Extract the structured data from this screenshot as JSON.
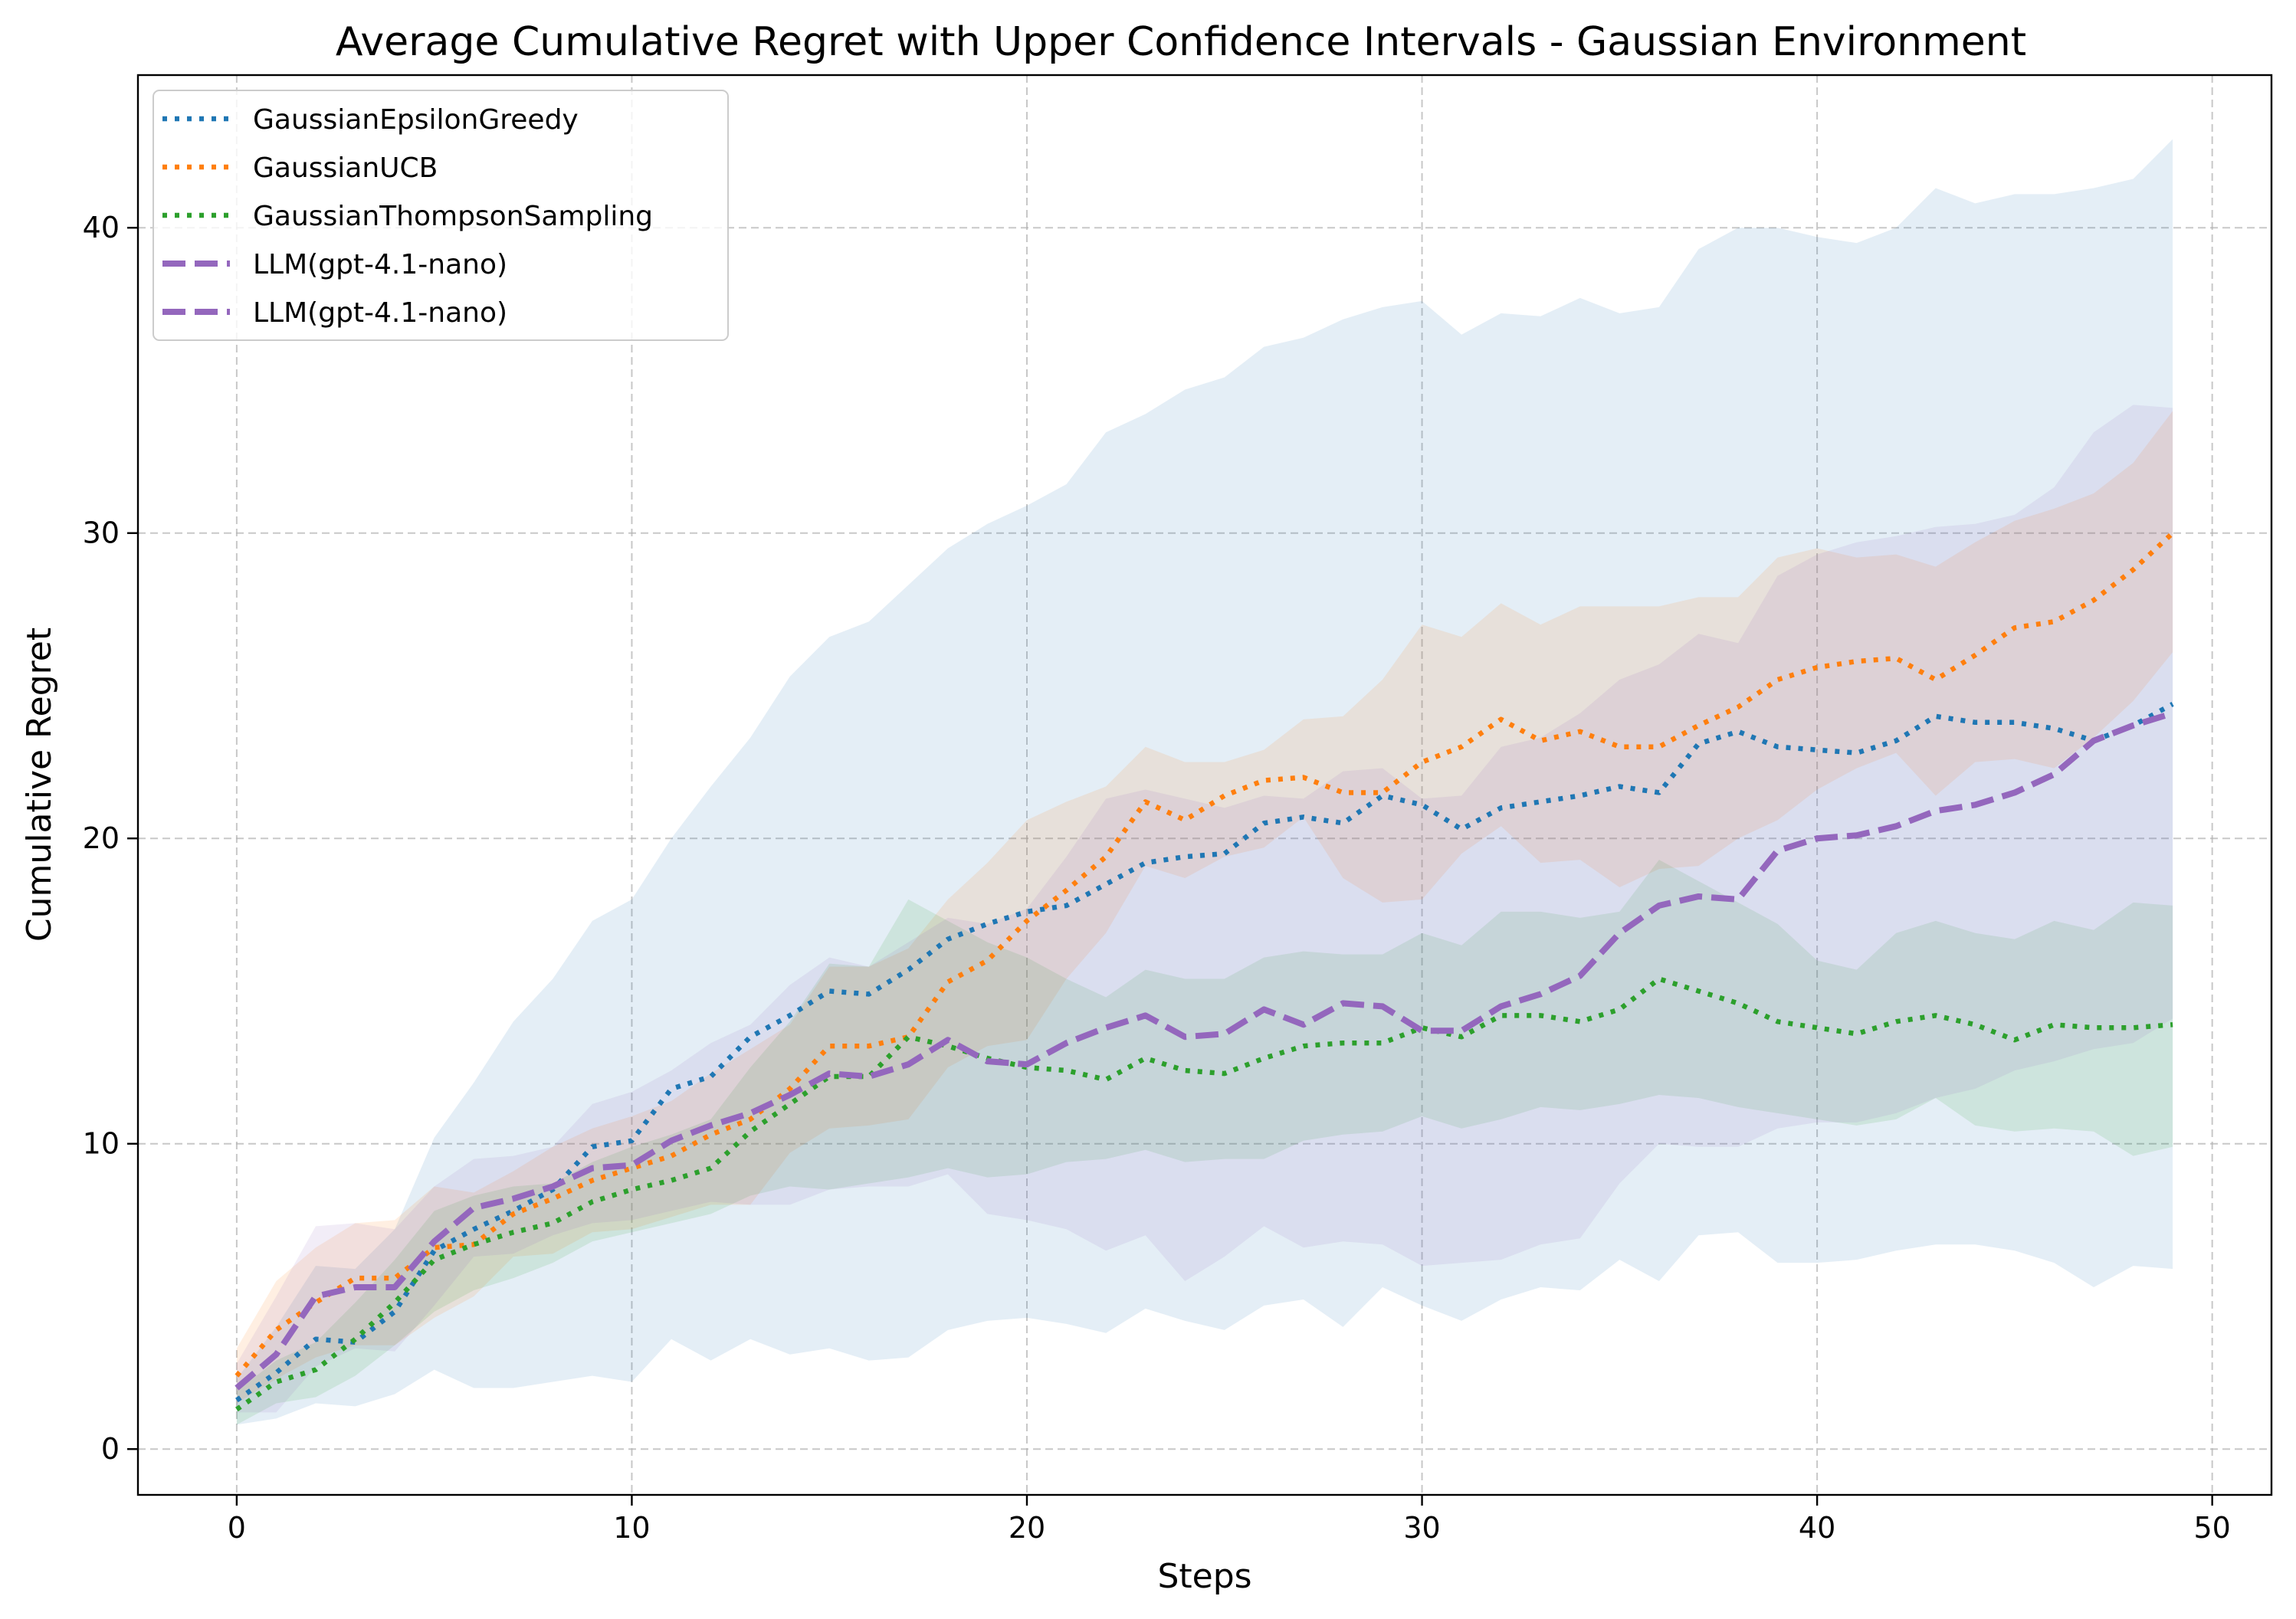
{
  "chart_data": {
    "type": "line",
    "title": "Average Cumulative Regret with Upper Confidence Intervals - Gaussian Environment",
    "xlabel": "Steps",
    "ylabel": "Cumulative Regret",
    "xlim": [
      -2.5,
      51.5
    ],
    "ylim": [
      -1.5,
      45
    ],
    "xticks": [
      0,
      10,
      20,
      30,
      40,
      50
    ],
    "yticks": [
      0,
      10,
      20,
      30,
      40
    ],
    "grid": true,
    "legend_position": "upper-left",
    "x": [
      0,
      1,
      2,
      3,
      4,
      5,
      6,
      7,
      8,
      9,
      10,
      11,
      12,
      13,
      14,
      15,
      16,
      17,
      18,
      19,
      20,
      21,
      22,
      23,
      24,
      25,
      26,
      27,
      28,
      29,
      30,
      31,
      32,
      33,
      34,
      35,
      36,
      37,
      38,
      39,
      40,
      41,
      42,
      43,
      44,
      45,
      46,
      47,
      48,
      49
    ],
    "series": [
      {
        "name": "GaussianEpsilonGreedy",
        "color": "#1f77b4",
        "dash": "dotted",
        "values": [
          1.6,
          2.5,
          3.6,
          3.5,
          4.5,
          6.5,
          7.2,
          7.8,
          8.5,
          9.9,
          10.1,
          11.8,
          12.2,
          13.5,
          14.2,
          15.0,
          14.9,
          15.7,
          16.7,
          17.2,
          17.6,
          17.8,
          18.5,
          19.2,
          19.4,
          19.5,
          20.5,
          20.7,
          20.5,
          21.4,
          21.1,
          20.3,
          21.0,
          21.2,
          21.4,
          21.7,
          21.5,
          23.1,
          23.5,
          23.0,
          22.9,
          22.8,
          23.2,
          24.0,
          23.8,
          23.8,
          23.6,
          23.2,
          23.7,
          24.4
        ],
        "lower": [
          0.8,
          1.0,
          1.5,
          1.4,
          1.8,
          2.6,
          2.0,
          2.0,
          2.2,
          2.4,
          2.2,
          3.6,
          2.9,
          3.6,
          3.1,
          3.3,
          2.9,
          3.0,
          3.9,
          4.2,
          4.3,
          4.1,
          3.8,
          4.6,
          4.2,
          3.9,
          4.7,
          4.9,
          4.0,
          5.3,
          4.7,
          4.2,
          4.9,
          5.3,
          5.2,
          6.2,
          5.5,
          7.0,
          7.1,
          6.1,
          6.1,
          6.2,
          6.5,
          6.7,
          6.7,
          6.5,
          6.1,
          5.3,
          6.0,
          5.9
        ],
        "upper": [
          2.3,
          4.0,
          6.0,
          5.9,
          7.2,
          10.2,
          12.0,
          14.0,
          15.4,
          17.3,
          18.0,
          20.0,
          21.7,
          23.3,
          25.3,
          26.6,
          27.1,
          28.3,
          29.5,
          30.3,
          30.9,
          31.6,
          33.3,
          33.9,
          34.7,
          35.1,
          36.1,
          36.4,
          37.0,
          37.4,
          37.6,
          36.5,
          37.2,
          37.1,
          37.7,
          37.2,
          37.4,
          39.3,
          40.0,
          40.0,
          39.7,
          39.5,
          40.0,
          41.3,
          40.8,
          41.1,
          41.1,
          41.3,
          41.6,
          42.9
        ]
      },
      {
        "name": "GaussianUCB",
        "color": "#ff7f0e",
        "dash": "dotted",
        "values": [
          2.4,
          3.9,
          4.8,
          5.6,
          5.6,
          6.6,
          6.7,
          7.7,
          8.2,
          8.8,
          9.2,
          9.6,
          10.3,
          10.8,
          11.8,
          13.2,
          13.2,
          13.5,
          15.3,
          16.0,
          17.3,
          18.3,
          19.4,
          21.2,
          20.6,
          21.4,
          21.9,
          22.0,
          21.5,
          21.5,
          22.5,
          23.0,
          23.9,
          23.2,
          23.5,
          23.0,
          23.0,
          23.7,
          24.3,
          25.2,
          25.6,
          25.8,
          25.9,
          25.2,
          26.0,
          26.9,
          27.1,
          27.8,
          28.8,
          30.0
        ],
        "lower": [
          1.5,
          2.3,
          3.0,
          3.4,
          3.4,
          4.3,
          5.0,
          6.3,
          6.4,
          7.1,
          7.2,
          7.6,
          8.0,
          8.0,
          9.7,
          10.5,
          10.6,
          10.8,
          12.5,
          13.2,
          13.4,
          15.4,
          16.9,
          19.1,
          18.7,
          19.4,
          19.7,
          20.7,
          18.7,
          17.9,
          18.0,
          19.5,
          20.4,
          19.2,
          19.3,
          18.4,
          19.0,
          19.1,
          20.0,
          20.6,
          21.6,
          22.3,
          22.8,
          21.4,
          22.5,
          22.6,
          22.3,
          23.3,
          24.5,
          26.1
        ],
        "upper": [
          3.3,
          5.5,
          6.6,
          7.4,
          7.5,
          8.6,
          8.4,
          9.1,
          9.9,
          10.5,
          10.9,
          11.4,
          12.3,
          13.1,
          13.9,
          15.8,
          15.8,
          16.4,
          18.0,
          19.2,
          20.6,
          21.2,
          21.7,
          23.0,
          22.5,
          22.5,
          22.9,
          23.9,
          24.0,
          25.2,
          27.0,
          26.6,
          27.7,
          27.0,
          27.6,
          27.6,
          27.6,
          27.9,
          27.9,
          29.2,
          29.5,
          29.2,
          29.3,
          28.9,
          29.7,
          30.4,
          30.8,
          31.3,
          32.3,
          34.0
        ]
      },
      {
        "name": "GaussianThompsonSampling",
        "color": "#2ca02c",
        "dash": "dotted",
        "values": [
          1.3,
          2.2,
          2.6,
          3.6,
          4.8,
          6.2,
          6.7,
          7.1,
          7.4,
          8.1,
          8.5,
          8.8,
          9.2,
          10.4,
          11.3,
          12.2,
          12.2,
          13.5,
          13.2,
          12.8,
          12.5,
          12.4,
          12.1,
          12.8,
          12.4,
          12.3,
          12.8,
          13.2,
          13.3,
          13.3,
          13.8,
          13.5,
          14.2,
          14.2,
          14.0,
          14.4,
          15.4,
          15.0,
          14.6,
          14.0,
          13.8,
          13.6,
          14.0,
          14.2,
          13.9,
          13.4,
          13.9,
          13.8,
          13.8,
          13.9
        ],
        "lower": [
          0.8,
          1.5,
          1.7,
          2.4,
          3.4,
          4.5,
          5.2,
          5.6,
          6.1,
          6.8,
          7.1,
          7.4,
          7.7,
          8.3,
          8.6,
          8.5,
          8.7,
          8.9,
          9.2,
          8.9,
          9.0,
          9.4,
          9.5,
          9.8,
          9.4,
          9.5,
          9.5,
          10.1,
          10.3,
          10.4,
          10.9,
          10.5,
          10.8,
          11.2,
          11.1,
          11.3,
          11.6,
          11.5,
          11.2,
          11.0,
          10.8,
          10.6,
          10.8,
          11.5,
          10.6,
          10.4,
          10.5,
          10.4,
          9.6,
          9.9
        ],
        "upper": [
          1.9,
          2.9,
          3.5,
          4.8,
          6.2,
          7.8,
          8.3,
          8.6,
          8.7,
          9.4,
          9.9,
          10.3,
          10.8,
          12.5,
          14.0,
          15.9,
          15.8,
          18.0,
          17.3,
          16.6,
          16.1,
          15.4,
          14.8,
          15.7,
          15.4,
          15.4,
          16.1,
          16.3,
          16.2,
          16.2,
          16.9,
          16.5,
          17.6,
          17.6,
          17.4,
          17.6,
          19.3,
          18.6,
          17.9,
          17.2,
          16.0,
          15.7,
          16.9,
          17.3,
          16.9,
          16.7,
          17.3,
          17.0,
          17.9,
          17.8
        ]
      },
      {
        "name": "LLM(gpt-4.1-nano)",
        "color": "#9467bd",
        "dash": "dashed",
        "values": [
          2.0,
          3.1,
          5.0,
          5.3,
          5.3,
          6.8,
          7.9,
          8.2,
          8.6,
          9.2,
          9.3,
          10.1,
          10.6,
          11.0,
          11.6,
          12.3,
          12.2,
          12.6,
          13.4,
          12.7,
          12.6,
          13.3,
          13.8,
          14.2,
          13.5,
          13.6,
          14.4,
          13.9,
          14.6,
          14.5,
          13.7,
          13.7,
          14.5,
          14.9,
          15.5,
          16.9,
          17.8,
          18.1,
          18.0,
          19.6,
          20.0,
          20.1,
          20.4,
          20.9,
          21.1,
          21.5,
          22.1,
          23.2,
          23.7,
          24.1
        ],
        "lower": [
          1.2,
          1.2,
          2.7,
          3.3,
          3.2,
          4.7,
          6.3,
          6.4,
          7.0,
          7.4,
          7.5,
          7.8,
          8.1,
          8.0,
          8.0,
          8.5,
          8.6,
          8.6,
          9.0,
          7.7,
          7.5,
          7.2,
          6.5,
          7.0,
          5.5,
          6.3,
          7.3,
          6.6,
          6.8,
          6.7,
          6.0,
          6.1,
          6.2,
          6.7,
          6.9,
          8.7,
          10.0,
          9.9,
          9.9,
          10.5,
          10.7,
          10.7,
          11.0,
          11.5,
          11.8,
          12.4,
          12.7,
          13.1,
          13.3,
          14.1
        ],
        "upper": [
          2.8,
          5.0,
          7.3,
          7.4,
          7.2,
          8.6,
          9.5,
          9.6,
          9.9,
          11.3,
          11.7,
          12.4,
          13.3,
          13.9,
          15.2,
          16.1,
          15.8,
          16.6,
          17.4,
          17.2,
          17.7,
          19.4,
          21.3,
          21.6,
          21.3,
          21.0,
          21.4,
          21.3,
          22.2,
          22.3,
          21.3,
          21.4,
          23.0,
          23.3,
          24.1,
          25.2,
          25.7,
          26.7,
          26.4,
          28.6,
          29.3,
          29.7,
          29.9,
          30.2,
          30.3,
          30.6,
          31.5,
          33.3,
          34.2,
          34.1
        ]
      }
    ],
    "legend_entries": [
      {
        "label": "GaussianEpsilonGreedy",
        "color": "#1f77b4",
        "dash": "dotted"
      },
      {
        "label": "GaussianUCB",
        "color": "#ff7f0e",
        "dash": "dotted"
      },
      {
        "label": "GaussianThompsonSampling",
        "color": "#2ca02c",
        "dash": "dotted"
      },
      {
        "label": "LLM(gpt-4.1-nano)",
        "color": "#9467bd",
        "dash": "dashed"
      },
      {
        "label": "LLM(gpt-4.1-nano)",
        "color": "#9467bd",
        "dash": "dashed"
      }
    ]
  }
}
